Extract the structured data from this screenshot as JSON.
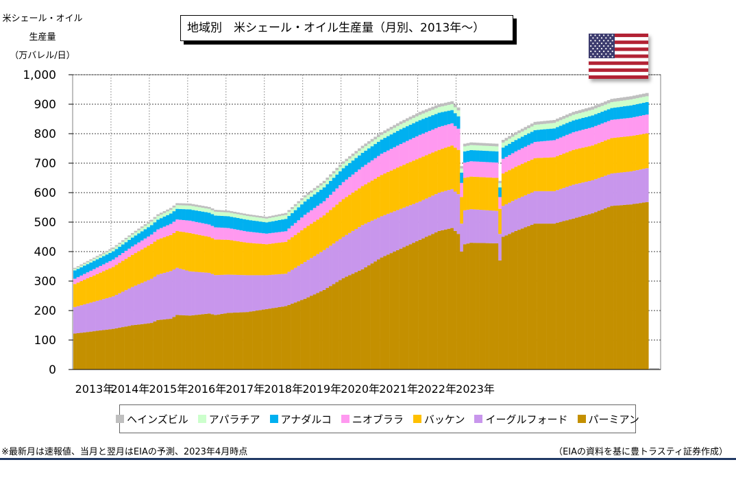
{
  "header": {
    "title": "地域別　米シェール・オイル生産量（月別、2013年～）"
  },
  "footer": {
    "note": "※最新月は速報値、当月と翌月はEIAの予測、2023年4月時点",
    "source": "（EIAの資料を基に豊トラスティ証券作成）"
  },
  "chart_data": {
    "type": "bar",
    "stacked": true,
    "ylabel_lines": [
      "米シェール・オイル",
      "生産量",
      "（万バレル/日）"
    ],
    "ylim": [
      0,
      1000
    ],
    "yticks": [
      "0",
      "100",
      "200",
      "300",
      "400",
      "500",
      "600",
      "700",
      "800",
      "900",
      "1,000"
    ],
    "xticks": [
      "2013年",
      "2014年",
      "2015年",
      "2016年",
      "2017年",
      "2018年",
      "2019年",
      "2020年",
      "2021年",
      "2022年",
      "2023年"
    ],
    "grid": "horizontal-dotted",
    "legend_position": "bottom",
    "months_per_year": 12,
    "series": [
      {
        "name": "パーミアン",
        "color": "#c49000",
        "anchors": [
          [
            0,
            122
          ],
          [
            6,
            130
          ],
          [
            12,
            138
          ],
          [
            18,
            150
          ],
          [
            24,
            158
          ],
          [
            26,
            168
          ],
          [
            30,
            172
          ],
          [
            32,
            185
          ],
          [
            36,
            183
          ],
          [
            42,
            190
          ],
          [
            44,
            185
          ],
          [
            48,
            192
          ],
          [
            54,
            195
          ],
          [
            60,
            205
          ],
          [
            66,
            215
          ],
          [
            72,
            240
          ],
          [
            78,
            270
          ],
          [
            84,
            310
          ],
          [
            90,
            340
          ],
          [
            96,
            380
          ],
          [
            102,
            410
          ],
          [
            108,
            440
          ],
          [
            114,
            470
          ],
          [
            118,
            480
          ],
          [
            120,
            460
          ],
          [
            121,
            400
          ],
          [
            122,
            425
          ],
          [
            124,
            430
          ],
          [
            132,
            428
          ],
          [
            133,
            370
          ],
          [
            134,
            450
          ],
          [
            138,
            470
          ],
          [
            144,
            495
          ],
          [
            150,
            495
          ],
          [
            156,
            512
          ],
          [
            162,
            530
          ],
          [
            168,
            555
          ],
          [
            174,
            560
          ],
          [
            179,
            568
          ]
        ]
      },
      {
        "name": "イーグルフォード",
        "color": "#c896ec",
        "anchors": [
          [
            0,
            90
          ],
          [
            12,
            110
          ],
          [
            24,
            150
          ],
          [
            30,
            162
          ],
          [
            32,
            160
          ],
          [
            36,
            150
          ],
          [
            42,
            138
          ],
          [
            48,
            130
          ],
          [
            54,
            125
          ],
          [
            60,
            115
          ],
          [
            66,
            110
          ],
          [
            72,
            125
          ],
          [
            78,
            135
          ],
          [
            84,
            140
          ],
          [
            90,
            150
          ],
          [
            96,
            140
          ],
          [
            108,
            130
          ],
          [
            114,
            130
          ],
          [
            118,
            132
          ],
          [
            120,
            135
          ],
          [
            121,
            95
          ],
          [
            122,
            115
          ],
          [
            132,
            110
          ],
          [
            133,
            90
          ],
          [
            134,
            105
          ],
          [
            144,
            110
          ],
          [
            150,
            110
          ],
          [
            156,
            115
          ],
          [
            162,
            112
          ],
          [
            168,
            110
          ],
          [
            174,
            112
          ],
          [
            179,
            115
          ]
        ]
      },
      {
        "name": "バッケン",
        "color": "#ffc000",
        "anchors": [
          [
            0,
            78
          ],
          [
            12,
            100
          ],
          [
            24,
            118
          ],
          [
            30,
            122
          ],
          [
            36,
            130
          ],
          [
            42,
            122
          ],
          [
            48,
            118
          ],
          [
            54,
            110
          ],
          [
            60,
            105
          ],
          [
            66,
            108
          ],
          [
            72,
            115
          ],
          [
            78,
            118
          ],
          [
            84,
            128
          ],
          [
            90,
            132
          ],
          [
            96,
            140
          ],
          [
            102,
            145
          ],
          [
            108,
            148
          ],
          [
            114,
            145
          ],
          [
            118,
            148
          ],
          [
            120,
            150
          ],
          [
            121,
            90
          ],
          [
            122,
            110
          ],
          [
            132,
            112
          ],
          [
            133,
            85
          ],
          [
            134,
            110
          ],
          [
            144,
            112
          ],
          [
            150,
            115
          ],
          [
            156,
            118
          ],
          [
            162,
            118
          ],
          [
            168,
            120
          ],
          [
            174,
            120
          ],
          [
            179,
            118
          ]
        ]
      },
      {
        "name": "ニオブララ",
        "color": "#ff99f0",
        "anchors": [
          [
            0,
            18
          ],
          [
            12,
            25
          ],
          [
            24,
            32
          ],
          [
            30,
            38
          ],
          [
            36,
            42
          ],
          [
            42,
            42
          ],
          [
            48,
            40
          ],
          [
            54,
            38
          ],
          [
            60,
            36
          ],
          [
            66,
            36
          ],
          [
            72,
            45
          ],
          [
            78,
            48
          ],
          [
            84,
            58
          ],
          [
            90,
            65
          ],
          [
            96,
            72
          ],
          [
            102,
            75
          ],
          [
            108,
            78
          ],
          [
            114,
            78
          ],
          [
            118,
            75
          ],
          [
            120,
            72
          ],
          [
            121,
            48
          ],
          [
            122,
            52
          ],
          [
            132,
            52
          ],
          [
            133,
            40
          ],
          [
            134,
            50
          ],
          [
            144,
            55
          ],
          [
            150,
            58
          ],
          [
            156,
            60
          ],
          [
            162,
            62
          ],
          [
            168,
            62
          ],
          [
            174,
            62
          ],
          [
            179,
            64
          ]
        ]
      },
      {
        "name": "アナダルコ",
        "color": "#00b0f0",
        "anchors": [
          [
            0,
            28
          ],
          [
            12,
            28
          ],
          [
            24,
            32
          ],
          [
            30,
            35
          ],
          [
            36,
            38
          ],
          [
            42,
            40
          ],
          [
            48,
            40
          ],
          [
            54,
            40
          ],
          [
            60,
            38
          ],
          [
            66,
            42
          ],
          [
            72,
            45
          ],
          [
            78,
            47
          ],
          [
            84,
            47
          ],
          [
            90,
            48
          ],
          [
            96,
            48
          ],
          [
            102,
            50
          ],
          [
            108,
            50
          ],
          [
            114,
            48
          ],
          [
            118,
            45
          ],
          [
            120,
            42
          ],
          [
            121,
            35
          ],
          [
            122,
            38
          ],
          [
            132,
            38
          ],
          [
            133,
            33
          ],
          [
            134,
            38
          ],
          [
            144,
            40
          ],
          [
            150,
            40
          ],
          [
            156,
            40
          ],
          [
            162,
            40
          ],
          [
            168,
            40
          ],
          [
            174,
            42
          ],
          [
            179,
            42
          ]
        ]
      },
      {
        "name": "アパラチア",
        "color": "#ccffcc",
        "anchors": [
          [
            0,
            5
          ],
          [
            12,
            8
          ],
          [
            24,
            12
          ],
          [
            36,
            13
          ],
          [
            48,
            13
          ],
          [
            60,
            13
          ],
          [
            72,
            14
          ],
          [
            84,
            15
          ],
          [
            96,
            16
          ],
          [
            108,
            18
          ],
          [
            118,
            20
          ],
          [
            120,
            20
          ],
          [
            121,
            14
          ],
          [
            122,
            17
          ],
          [
            132,
            17
          ],
          [
            133,
            14
          ],
          [
            134,
            17
          ],
          [
            144,
            18
          ],
          [
            156,
            19
          ],
          [
            168,
            20
          ],
          [
            179,
            20
          ]
        ]
      },
      {
        "name": "ヘインズビル",
        "color": "#bfbfbf",
        "anchors": [
          [
            0,
            4
          ],
          [
            12,
            5
          ],
          [
            24,
            6
          ],
          [
            36,
            7
          ],
          [
            48,
            6
          ],
          [
            60,
            6
          ],
          [
            72,
            7
          ],
          [
            84,
            8
          ],
          [
            96,
            9
          ],
          [
            108,
            10
          ],
          [
            118,
            10
          ],
          [
            120,
            10
          ],
          [
            121,
            8
          ],
          [
            122,
            9
          ],
          [
            132,
            9
          ],
          [
            133,
            8
          ],
          [
            134,
            9
          ],
          [
            144,
            10
          ],
          [
            156,
            10
          ],
          [
            168,
            11
          ],
          [
            179,
            11
          ]
        ]
      }
    ]
  }
}
